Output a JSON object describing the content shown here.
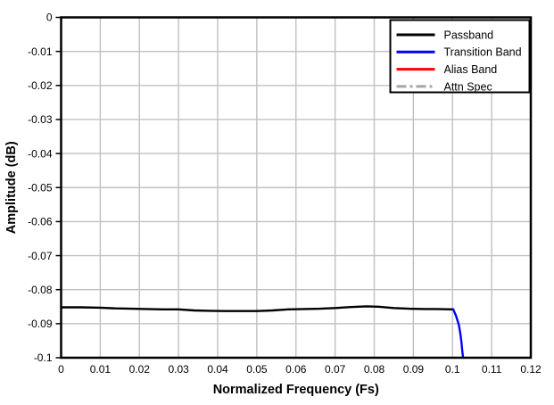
{
  "figure": {
    "background": "#ffffff",
    "plot_background": "#ffffff",
    "border_color": "#000000"
  },
  "chart_data": {
    "type": "line",
    "title": "",
    "xlabel": "Normalized Frequency (Fs)",
    "ylabel": "Amplitude (dB)",
    "xlim": [
      0,
      0.12
    ],
    "ylim": [
      -0.1,
      0
    ],
    "grid": true,
    "grid_color": "#c0c0c0",
    "axis_color": "#000000",
    "x_ticks": [
      0,
      0.01,
      0.02,
      0.03,
      0.04,
      0.05,
      0.06,
      0.07,
      0.08,
      0.09,
      0.1,
      0.11,
      0.12
    ],
    "x_tick_labels": [
      "0",
      "0.01",
      "0.02",
      "0.03",
      "0.04",
      "0.05",
      "0.06",
      "0.07",
      "0.08",
      "0.09",
      "0.1",
      "0.11",
      "0.12"
    ],
    "y_ticks": [
      0,
      -0.01,
      -0.02,
      -0.03,
      -0.04,
      -0.05,
      -0.06,
      -0.07,
      -0.08,
      -0.09,
      -0.1
    ],
    "y_tick_labels": [
      "0",
      "-0.01",
      "-0.02",
      "-0.03",
      "-0.04",
      "-0.05",
      "-0.06",
      "-0.07",
      "-0.08",
      "-0.09",
      "-0.1"
    ],
    "legend": {
      "position": "top-right",
      "border_color": "#000000",
      "background": "#ffffff",
      "entries": [
        {
          "label": "Passband",
          "color": "#000000",
          "style": "solid"
        },
        {
          "label": "Transition Band",
          "color": "#0000ff",
          "style": "solid"
        },
        {
          "label": "Alias Band",
          "color": "#ff0000",
          "style": "solid"
        },
        {
          "label": "Attn Spec",
          "color": "#a6a6a6",
          "style": "dash-dot"
        }
      ]
    },
    "series": [
      {
        "name": "Passband",
        "color": "#000000",
        "style": "solid",
        "points": [
          [
            0,
            -0.0852
          ],
          [
            0.005,
            -0.0852
          ],
          [
            0.01,
            -0.0853
          ],
          [
            0.014,
            -0.0855
          ],
          [
            0.018,
            -0.0856
          ],
          [
            0.022,
            -0.0857
          ],
          [
            0.026,
            -0.0858
          ],
          [
            0.03,
            -0.0858
          ],
          [
            0.034,
            -0.0861
          ],
          [
            0.038,
            -0.0862
          ],
          [
            0.042,
            -0.0863
          ],
          [
            0.046,
            -0.0863
          ],
          [
            0.05,
            -0.0863
          ],
          [
            0.054,
            -0.0861
          ],
          [
            0.058,
            -0.0858
          ],
          [
            0.062,
            -0.0857
          ],
          [
            0.066,
            -0.0856
          ],
          [
            0.07,
            -0.0854
          ],
          [
            0.074,
            -0.0851
          ],
          [
            0.078,
            -0.0849
          ],
          [
            0.081,
            -0.085
          ],
          [
            0.085,
            -0.0854
          ],
          [
            0.089,
            -0.0856
          ],
          [
            0.093,
            -0.0857
          ],
          [
            0.096,
            -0.0857
          ],
          [
            0.1002,
            -0.0858
          ]
        ]
      },
      {
        "name": "Transition Band",
        "color": "#0000ff",
        "style": "solid",
        "points": [
          [
            0.1002,
            -0.0858
          ],
          [
            0.1009,
            -0.0877
          ],
          [
            0.1016,
            -0.0903
          ],
          [
            0.102,
            -0.0929
          ],
          [
            0.1023,
            -0.0955
          ],
          [
            0.1025,
            -0.0981
          ],
          [
            0.1027,
            -0.1
          ]
        ]
      },
      {
        "name": "Alias Band",
        "color": "#ff0000",
        "style": "solid",
        "points": []
      },
      {
        "name": "Attn Spec",
        "color": "#a6a6a6",
        "style": "dash-dot",
        "points": []
      }
    ]
  }
}
